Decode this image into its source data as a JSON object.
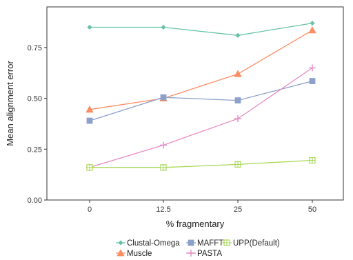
{
  "chart_data": {
    "type": "line",
    "xlabel": "% fragmentary",
    "ylabel": "Mean alignment error",
    "x": [
      0,
      12.5,
      25,
      50
    ],
    "x_tick_labels": [
      "0",
      "12.5",
      "25",
      "50"
    ],
    "y_ticks": [
      0.0,
      0.25,
      0.5,
      0.75
    ],
    "y_tick_labels": [
      "0.00",
      "0.25",
      "0.50",
      "0.75"
    ],
    "ylim": [
      0.0,
      0.95
    ],
    "grid": false,
    "legend_position": "bottom",
    "series": [
      {
        "name": "Clustal-Omega",
        "color": "#66c2a5",
        "marker": "diamond",
        "values": [
          0.85,
          0.85,
          0.81,
          0.87
        ]
      },
      {
        "name": "Muscle",
        "color": "#fc8d62",
        "marker": "triangle",
        "values": [
          0.445,
          0.5,
          0.62,
          0.835
        ]
      },
      {
        "name": "MAFFT",
        "color": "#8da0cb",
        "marker": "square",
        "values": [
          0.39,
          0.505,
          0.49,
          0.585
        ]
      },
      {
        "name": "PASTA",
        "color": "#e78ac3",
        "marker": "plus",
        "values": [
          0.16,
          0.27,
          0.4,
          0.65
        ]
      },
      {
        "name": "UPP(Default)",
        "color": "#a6d854",
        "marker": "square-cross",
        "values": [
          0.16,
          0.16,
          0.175,
          0.195
        ]
      }
    ]
  }
}
